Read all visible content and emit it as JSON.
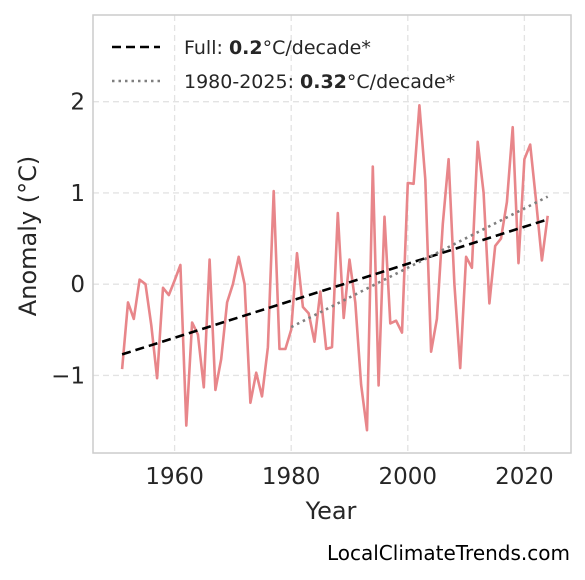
{
  "chart_data": {
    "type": "line",
    "xlabel": "Year",
    "ylabel": "Anomaly (°C)",
    "xlim": [
      1946,
      2028
    ],
    "ylim": [
      -1.85,
      2.95
    ],
    "x_ticks": [
      1960,
      1980,
      2000,
      2020
    ],
    "x_tick_labels": [
      "1960",
      "1980",
      "2000",
      "2020"
    ],
    "y_ticks": [
      -1,
      0,
      1,
      2
    ],
    "y_tick_labels": [
      "−1",
      "0",
      "1",
      "2"
    ],
    "grid": true,
    "legend_position": "top-left",
    "series": [
      {
        "style": "solid",
        "color": "#e8868a",
        "x": [
          1951,
          1952,
          1953,
          1954,
          1955,
          1956,
          1957,
          1958,
          1959,
          1960,
          1961,
          1962,
          1963,
          1964,
          1965,
          1966,
          1967,
          1968,
          1969,
          1970,
          1971,
          1972,
          1973,
          1974,
          1975,
          1976,
          1977,
          1978,
          1979,
          1980,
          1981,
          1982,
          1983,
          1984,
          1985,
          1986,
          1987,
          1988,
          1989,
          1990,
          1991,
          1992,
          1993,
          1994,
          1995,
          1996,
          1997,
          1998,
          1999,
          2000,
          2001,
          2002,
          2003,
          2004,
          2005,
          2006,
          2007,
          2008,
          2009,
          2010,
          2011,
          2012,
          2013,
          2014,
          2015,
          2016,
          2017,
          2018,
          2019,
          2020,
          2021,
          2022,
          2023,
          2024
        ],
        "y": [
          -0.93,
          -0.2,
          -0.38,
          0.05,
          0.0,
          -0.45,
          -1.03,
          -0.04,
          -0.12,
          0.04,
          0.21,
          -1.55,
          -0.42,
          -0.55,
          -1.13,
          0.27,
          -1.16,
          -0.82,
          -0.2,
          0.0,
          0.3,
          0.0,
          -1.3,
          -0.97,
          -1.23,
          -0.69,
          1.02,
          -0.71,
          -0.71,
          -0.5,
          0.34,
          -0.25,
          -0.32,
          -0.63,
          -0.08,
          -0.71,
          -0.69,
          0.78,
          -0.37,
          0.27,
          -0.2,
          -1.1,
          -1.6,
          1.29,
          -1.11,
          0.74,
          -0.43,
          -0.4,
          -0.53,
          1.11,
          1.1,
          1.96,
          1.15,
          -0.74,
          -0.38,
          0.66,
          1.37,
          0.0,
          -0.92,
          0.3,
          0.18,
          1.56,
          1.0,
          -0.21,
          0.42,
          0.5,
          0.9,
          1.72,
          0.23,
          1.37,
          1.53,
          0.92,
          0.26,
          0.75
        ]
      },
      {
        "name": "Full: 0.2°C/decade*",
        "style": "dashed",
        "color": "#000000",
        "x": [
          1951,
          2024
        ],
        "y": [
          -0.77,
          0.71
        ]
      },
      {
        "name": "1980-2025: 0.32°C/decade*",
        "style": "dotted",
        "color": "#7f7f7f",
        "x": [
          1980,
          2024
        ],
        "y": [
          -0.47,
          0.96
        ]
      }
    ]
  },
  "legend": {
    "items": [
      {
        "prefix": "Full: ",
        "value": "0.2",
        "suffix": "°C/decade*"
      },
      {
        "prefix": "1980-2025: ",
        "value": "0.32",
        "suffix": "°C/decade*"
      }
    ]
  },
  "credit": "LocalClimateTrends.com"
}
